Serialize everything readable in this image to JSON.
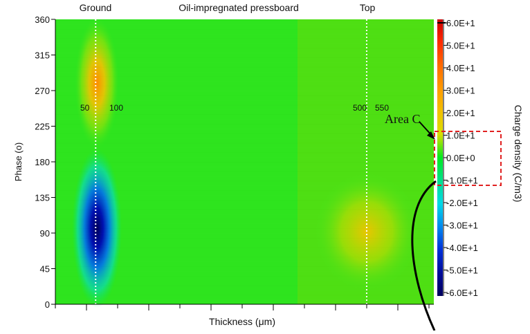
{
  "chart_data": {
    "type": "heatmap",
    "title": "",
    "xlabel": "Thickness (μm)",
    "ylabel": "Phase (o)",
    "xlim": [
      0,
      620
    ],
    "ylim": [
      0,
      360
    ],
    "y_ticks": [
      0,
      45,
      90,
      135,
      180,
      225,
      270,
      315,
      360
    ],
    "region_labels": [
      {
        "text": "Ground",
        "x": 66
      },
      {
        "text": "Oil-impregnated pressboard",
        "x": 310
      },
      {
        "text": "Top",
        "x": 510
      }
    ],
    "boundary_lines": [
      66,
      510
    ],
    "boundary_annotations": [
      {
        "text": "50",
        "x": 50
      },
      {
        "text": "100",
        "x": 100
      },
      {
        "text": "500",
        "x": 500
      },
      {
        "text": "550",
        "x": 550
      }
    ],
    "annotation_phase": 250,
    "colorbar": {
      "label": "Charge density (C/m3)",
      "min": -60,
      "max": 60,
      "ticks": [
        "6.0E+1",
        "5.0E+1",
        "4.0E+1",
        "3.0E+1",
        "2.0E+1",
        "1.0E+1",
        "0.0E+0",
        "-1.0E+1",
        "-2.0E+1",
        "-3.0E+1",
        "-4.0E+1",
        "-5.0E+1",
        "-6.0E+1"
      ],
      "colors": [
        "#cc0000",
        "#ff2a00",
        "#ff6a00",
        "#ff9a00",
        "#f2c000",
        "#d8df00",
        "#00ea20",
        "#00e08c",
        "#00d8e8",
        "#0088f0",
        "#0030d8",
        "#000c9a",
        "#00005c"
      ]
    },
    "features": [
      {
        "description": "positive charge near ground",
        "x": 66,
        "phase": 270,
        "value": 30
      },
      {
        "description": "negative charge near ground",
        "x": 66,
        "phase": 90,
        "value": -60
      },
      {
        "description": "positive charge near top",
        "x": 520,
        "phase": 90,
        "value": 20
      }
    ],
    "annotation": {
      "label": "Area C",
      "range": [
        -10,
        10
      ]
    }
  }
}
